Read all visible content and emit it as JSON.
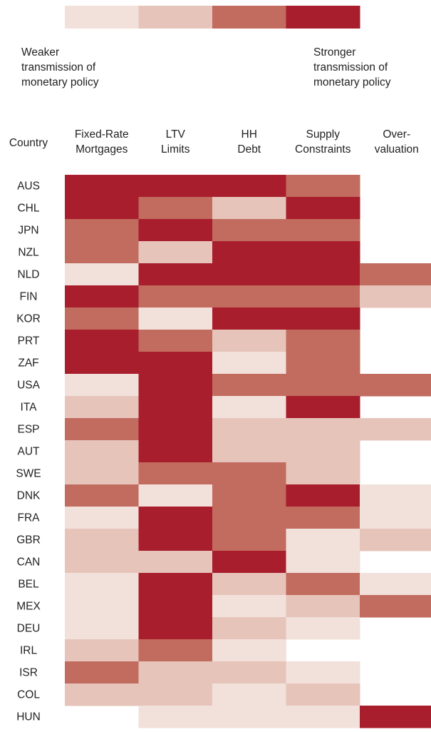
{
  "chart_data": {
    "type": "heatmap",
    "color_scale": [
      "#f2e1db",
      "#e6c4ba",
      "#c26b5f",
      "#a81e2c"
    ],
    "legend_low": [
      "Weaker",
      "transmission of",
      "monetary policy"
    ],
    "legend_high": [
      "Stronger",
      "transmission of",
      "monetary policy"
    ],
    "row_header": "Country",
    "columns": [
      [
        "Fixed-Rate",
        "Mortgages"
      ],
      [
        "LTV",
        "Limits"
      ],
      [
        "HH",
        "Debt"
      ],
      [
        "Supply",
        "Constraints"
      ],
      [
        "Over-",
        "valuation"
      ]
    ],
    "categories": [
      "AUS",
      "CHL",
      "JPN",
      "NZL",
      "NLD",
      "FIN",
      "KOR",
      "PRT",
      "ZAF",
      "USA",
      "ITA",
      "ESP",
      "AUT",
      "SWE",
      "DNK",
      "FRA",
      "GBR",
      "CAN",
      "BEL",
      "MEX",
      "DEU",
      "IRL",
      "ISR",
      "COL",
      "HUN"
    ],
    "values": [
      [
        4,
        4,
        4,
        3,
        null
      ],
      [
        4,
        3,
        2,
        4,
        null
      ],
      [
        3,
        4,
        3,
        3,
        null
      ],
      [
        3,
        2,
        4,
        4,
        null
      ],
      [
        1,
        4,
        4,
        4,
        3
      ],
      [
        4,
        3,
        3,
        3,
        2
      ],
      [
        3,
        1,
        4,
        4,
        null
      ],
      [
        4,
        3,
        2,
        3,
        null
      ],
      [
        4,
        4,
        1,
        3,
        null
      ],
      [
        1,
        4,
        3,
        3,
        3
      ],
      [
        2,
        4,
        1,
        4,
        null
      ],
      [
        3,
        4,
        2,
        2,
        2
      ],
      [
        2,
        4,
        2,
        2,
        null
      ],
      [
        2,
        3,
        3,
        2,
        null
      ],
      [
        3,
        1,
        3,
        4,
        1
      ],
      [
        1,
        4,
        3,
        3,
        1
      ],
      [
        2,
        4,
        3,
        1,
        2
      ],
      [
        2,
        2,
        4,
        1,
        null
      ],
      [
        1,
        4,
        2,
        3,
        1
      ],
      [
        1,
        4,
        1,
        2,
        3
      ],
      [
        1,
        4,
        2,
        1,
        null
      ],
      [
        2,
        3,
        1,
        null,
        null
      ],
      [
        3,
        2,
        2,
        1,
        null
      ],
      [
        2,
        2,
        1,
        2,
        null
      ],
      [
        null,
        1,
        1,
        1,
        4
      ]
    ]
  }
}
